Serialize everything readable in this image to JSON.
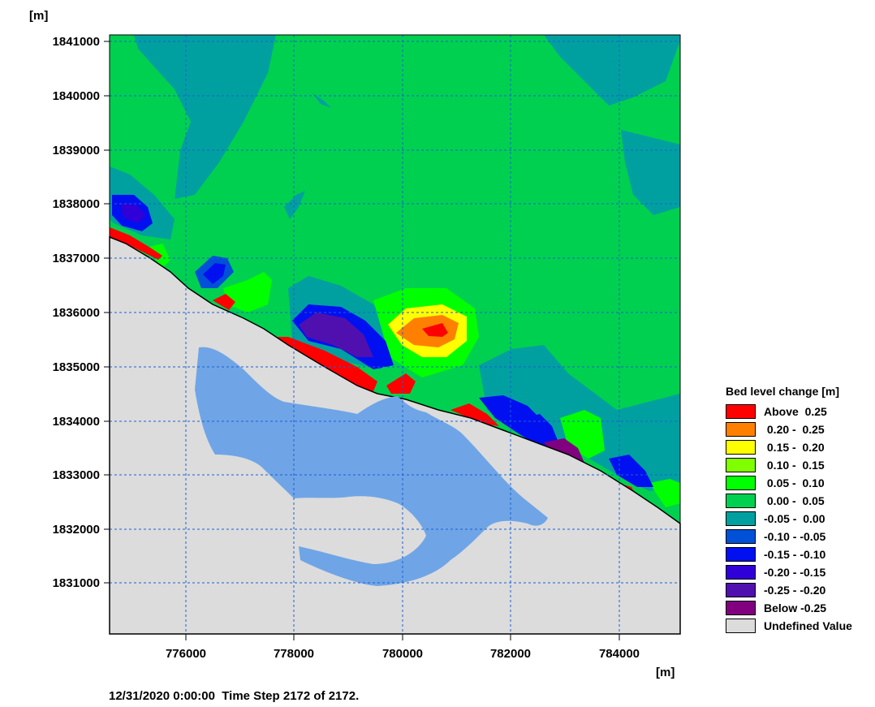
{
  "axes": {
    "y_unit": "[m]",
    "x_unit": "[m]",
    "y_ticks": [
      "1841000",
      "1840000",
      "1839000",
      "1838000",
      "1837000",
      "1836000",
      "1835000",
      "1834000",
      "1833000",
      "1832000",
      "1831000"
    ],
    "x_ticks": [
      "776000",
      "778000",
      "780000",
      "782000",
      "784000"
    ]
  },
  "legend": {
    "title": "Bed level change [m]",
    "items": [
      {
        "label": "Above  0.25",
        "color": "#ff0000"
      },
      {
        "label": " 0.20 -  0.25",
        "color": "#ff8000"
      },
      {
        "label": " 0.15 -  0.20",
        "color": "#ffff00"
      },
      {
        "label": " 0.10 -  0.15",
        "color": "#80ff00"
      },
      {
        "label": " 0.05 -  0.10",
        "color": "#00ff00"
      },
      {
        "label": " 0.00 -  0.05",
        "color": "#00d050"
      },
      {
        "label": "-0.05 -  0.00",
        "color": "#00a0a0"
      },
      {
        "label": "-0.10 - -0.05",
        "color": "#0050d8"
      },
      {
        "label": "-0.15 - -0.10",
        "color": "#0010f0"
      },
      {
        "label": "-0.20 - -0.15",
        "color": "#3000d8"
      },
      {
        "label": "-0.25 - -0.20",
        "color": "#5010b0"
      },
      {
        "label": "Below -0.25",
        "color": "#800080"
      },
      {
        "label": "Undefined Value",
        "color": "#dcdcdc"
      }
    ]
  },
  "status": {
    "timestamp": "12/31/2020 0:00:00  Time Step 2172 of 2172."
  },
  "colors": {
    "water_body": "#6fa5e6",
    "grid_line": "#1a5fd6"
  }
}
